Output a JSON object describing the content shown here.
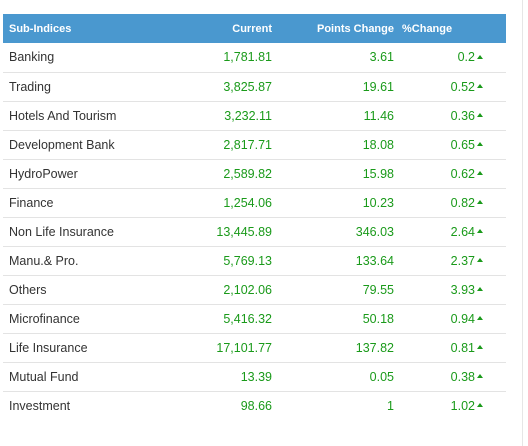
{
  "table": {
    "headers": {
      "name": "Sub-Indices",
      "current": "Current",
      "points_change": "Points Change",
      "percent_change": "%Change"
    },
    "trend_icon": "up-arrow-icon",
    "trend_color": "#1a9a1a",
    "header_color": "#4a98cf",
    "rows": [
      {
        "name": "Banking",
        "current": "1,781.81",
        "points_change": "3.61",
        "percent_change": "0.2"
      },
      {
        "name": "Trading",
        "current": "3,825.87",
        "points_change": "19.61",
        "percent_change": "0.52"
      },
      {
        "name": "Hotels And Tourism",
        "current": "3,232.11",
        "points_change": "11.46",
        "percent_change": "0.36"
      },
      {
        "name": "Development Bank",
        "current": "2,817.71",
        "points_change": "18.08",
        "percent_change": "0.65"
      },
      {
        "name": "HydroPower",
        "current": "2,589.82",
        "points_change": "15.98",
        "percent_change": "0.62"
      },
      {
        "name": "Finance",
        "current": "1,254.06",
        "points_change": "10.23",
        "percent_change": "0.82"
      },
      {
        "name": "Non Life Insurance",
        "current": "13,445.89",
        "points_change": "346.03",
        "percent_change": "2.64"
      },
      {
        "name": "Manu.& Pro.",
        "current": "5,769.13",
        "points_change": "133.64",
        "percent_change": "2.37"
      },
      {
        "name": "Others",
        "current": "2,102.06",
        "points_change": "79.55",
        "percent_change": "3.93"
      },
      {
        "name": "Microfinance",
        "current": "5,416.32",
        "points_change": "50.18",
        "percent_change": "0.94"
      },
      {
        "name": "Life Insurance",
        "current": "17,101.77",
        "points_change": "137.82",
        "percent_change": "0.81"
      },
      {
        "name": "Mutual Fund",
        "current": "13.39",
        "points_change": "0.05",
        "percent_change": "0.38"
      },
      {
        "name": "Investment",
        "current": "98.66",
        "points_change": "1",
        "percent_change": "1.02"
      }
    ]
  }
}
